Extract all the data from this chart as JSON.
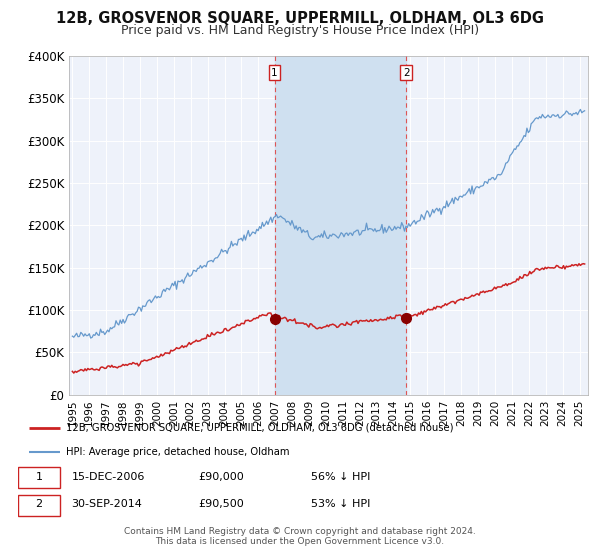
{
  "title": "12B, GROSVENOR SQUARE, UPPERMILL, OLDHAM, OL3 6DG",
  "subtitle": "Price paid vs. HM Land Registry's House Price Index (HPI)",
  "ylim": [
    0,
    400000
  ],
  "yticks": [
    0,
    50000,
    100000,
    150000,
    200000,
    250000,
    300000,
    350000,
    400000
  ],
  "ytick_labels": [
    "£0",
    "£50K",
    "£100K",
    "£150K",
    "£200K",
    "£250K",
    "£300K",
    "£350K",
    "£400K"
  ],
  "xlim_start": 1994.8,
  "xlim_end": 2025.5,
  "xtick_years": [
    1995,
    1996,
    1997,
    1998,
    1999,
    2000,
    2001,
    2002,
    2003,
    2004,
    2005,
    2006,
    2007,
    2008,
    2009,
    2010,
    2011,
    2012,
    2013,
    2014,
    2015,
    2016,
    2017,
    2018,
    2019,
    2020,
    2021,
    2022,
    2023,
    2024,
    2025
  ],
  "fig_bg_color": "#ffffff",
  "plot_bg_color": "#eef2fa",
  "grid_color": "#ffffff",
  "hpi_line_color": "#6699cc",
  "price_line_color": "#cc2222",
  "shade_color": "#cfe0f0",
  "vline_color": "#dd5555",
  "marker1_x": 2006.96,
  "marker1_y": 90000,
  "marker2_x": 2014.75,
  "marker2_y": 90500,
  "marker_color": "#880000",
  "marker_size": 7,
  "legend_label_red": "12B, GROSVENOR SQUARE, UPPERMILL, OLDHAM, OL3 6DG (detached house)",
  "legend_label_blue": "HPI: Average price, detached house, Oldham",
  "annotation1_label": "1",
  "annotation2_label": "2",
  "table_row1": [
    "1",
    "15-DEC-2006",
    "£90,000",
    "56% ↓ HPI"
  ],
  "table_row2": [
    "2",
    "30-SEP-2014",
    "£90,500",
    "53% ↓ HPI"
  ],
  "footer1": "Contains HM Land Registry data © Crown copyright and database right 2024.",
  "footer2": "This data is licensed under the Open Government Licence v3.0.",
  "title_fontsize": 10.5,
  "subtitle_fontsize": 9
}
